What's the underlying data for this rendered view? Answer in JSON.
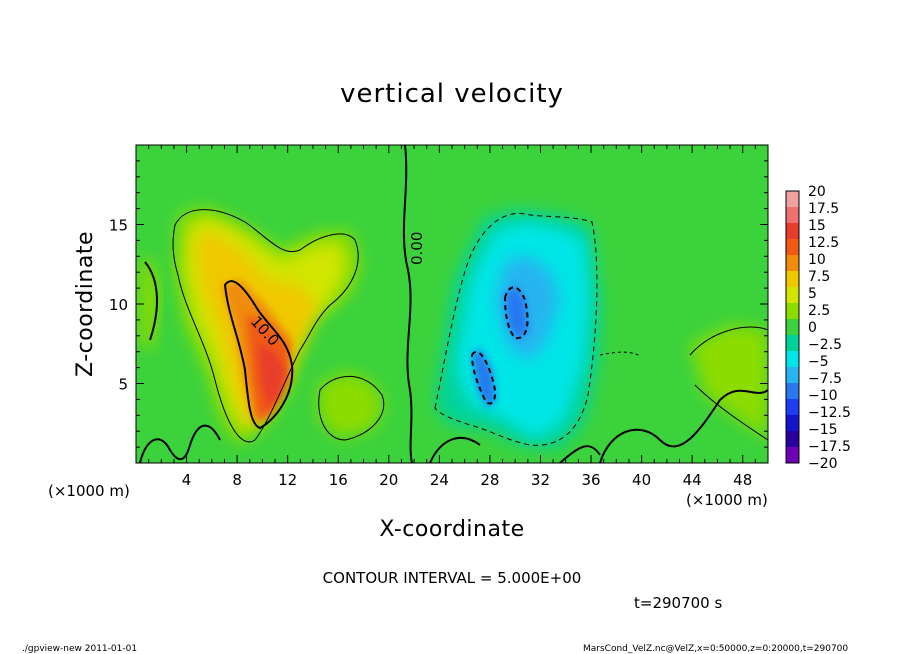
{
  "chart_data": {
    "type": "heatmap",
    "title": "vertical velocity",
    "xlabel": "X-coordinate",
    "ylabel": "Z-coordinate",
    "x_unit": "(×1000 m)",
    "z_unit": "(×1000 m)",
    "xlim": [
      0,
      50
    ],
    "ylim": [
      0,
      20
    ],
    "x_ticks": [
      "4",
      "8",
      "12",
      "16",
      "20",
      "24",
      "28",
      "32",
      "36",
      "40",
      "44",
      "48"
    ],
    "y_ticks": [
      "5",
      "10",
      "15"
    ],
    "colorbar": {
      "labels": [
        "20",
        "17.5",
        "15",
        "12.5",
        "10",
        "7.5",
        "5",
        "2.5",
        "0",
        "−2.5",
        "−5",
        "−7.5",
        "−10",
        "−12.5",
        "−15",
        "−17.5",
        "−20"
      ],
      "colors": [
        "#f0a0a0",
        "#f07070",
        "#e83c2a",
        "#f05a14",
        "#f08c0a",
        "#f0c800",
        "#d2e600",
        "#8cdc00",
        "#3cd23c",
        "#00d29a",
        "#00e6e6",
        "#28b4f0",
        "#2878f0",
        "#1e3cf0",
        "#1414c8",
        "#2800a0",
        "#6e00b4"
      ]
    },
    "contour_labels": [
      "0.00",
      "10.0"
    ],
    "contour_interval": "CONTOUR INTERVAL = 5.000E+00",
    "time": "t=290700 s"
  },
  "footer": {
    "left": "./gpview-new   2011-01-01",
    "right": "MarsCond_VelZ.nc@VelZ,x=0:50000,z=0:20000,t=290700"
  }
}
